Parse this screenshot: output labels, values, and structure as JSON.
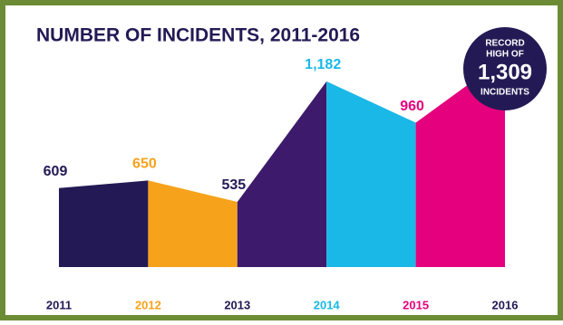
{
  "chart_data": {
    "type": "segmented-area",
    "title": "NUMBER OF INCIDENTS, 2011-2016",
    "categories": [
      "2011",
      "2012",
      "2013",
      "2014",
      "2015",
      "2016"
    ],
    "values": [
      609,
      650,
      535,
      1182,
      960,
      1309
    ],
    "value_labels": [
      "609",
      "650",
      "535",
      "1,182",
      "960",
      "1,309"
    ],
    "colors": [
      "#231a55",
      "#f7a21b",
      "#3d1a6b",
      "#1ab8e6",
      "#e5007e",
      "#231a55"
    ],
    "label_colors": [
      "#231a55",
      "#f7a21b",
      "#231a55",
      "#1ab8e6",
      "#e5007e",
      "#231a55"
    ],
    "ylim": [
      185,
      1400
    ],
    "annotation": [
      "RECORD",
      "HIGH OF",
      "INCIDENTS"
    ]
  }
}
